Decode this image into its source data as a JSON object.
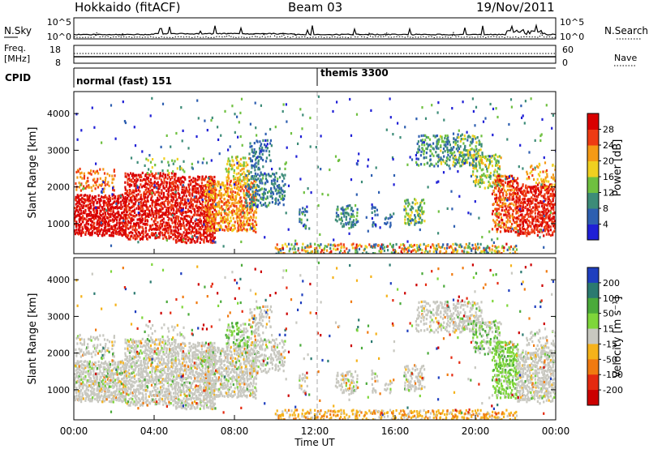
{
  "header": {
    "station": "Hokkaido (fitACF)",
    "beam": "Beam 03",
    "date": "19/Nov/2011"
  },
  "nsky_panel": {
    "left_label": "N.Sky",
    "left_ticks": [
      "10^5",
      "10^0"
    ],
    "right_ticks": [
      "10^5",
      "10^0"
    ],
    "right_label": "N.Search"
  },
  "freq_panel": {
    "label_line1": "Freq.",
    "label_line2": "[MHz]",
    "left_ticks": [
      "18",
      "8"
    ],
    "right_ticks": [
      "60",
      "0"
    ],
    "right_label": "Nave"
  },
  "cpid_panel": {
    "label": "CPID",
    "modes": [
      {
        "name": "normal (fast) 151",
        "start_hour": 0
      },
      {
        "name": "themis 3300",
        "start_hour": 12
      }
    ]
  },
  "chart_data": [
    {
      "type": "heatmap",
      "title": "Power",
      "ylabel": "Slant Range [km]",
      "xlabel": "",
      "ylim": [
        180,
        4600
      ],
      "yticks": [
        "1000",
        "2000",
        "3000",
        "4000"
      ],
      "colorbar": {
        "label": "Power [dB]",
        "ticks": [
          "4",
          "8",
          "12",
          "16",
          "20",
          "24",
          "28"
        ],
        "range": [
          0,
          30
        ],
        "colors": [
          "#1f1fd6",
          "#2e5fb0",
          "#3d8c78",
          "#6fc040",
          "#f0d020",
          "#f59a15",
          "#ee3b13",
          "#d90000"
        ]
      }
    },
    {
      "type": "heatmap",
      "title": "Velocity",
      "ylabel": "Slant Range [km]",
      "xlabel": "Time UT",
      "ylim": [
        180,
        4600
      ],
      "yticks": [
        "1000",
        "2000",
        "3000",
        "4000"
      ],
      "xticks": [
        "00:00",
        "04:00",
        "08:00",
        "12:00",
        "16:00",
        "20:00",
        "00:00"
      ],
      "colorbar": {
        "label": "Velocity [m s⁻¹]",
        "ticks": [
          "200",
          "100",
          "50",
          "15",
          "-15",
          "-50",
          "-100",
          "-200"
        ],
        "colors": [
          "#1f3fbf",
          "#2b7a70",
          "#4aaa3a",
          "#7ed63a",
          "#c8c8c0",
          "#f5b21a",
          "#f07a10",
          "#e42a10",
          "#cc0000"
        ]
      }
    }
  ]
}
